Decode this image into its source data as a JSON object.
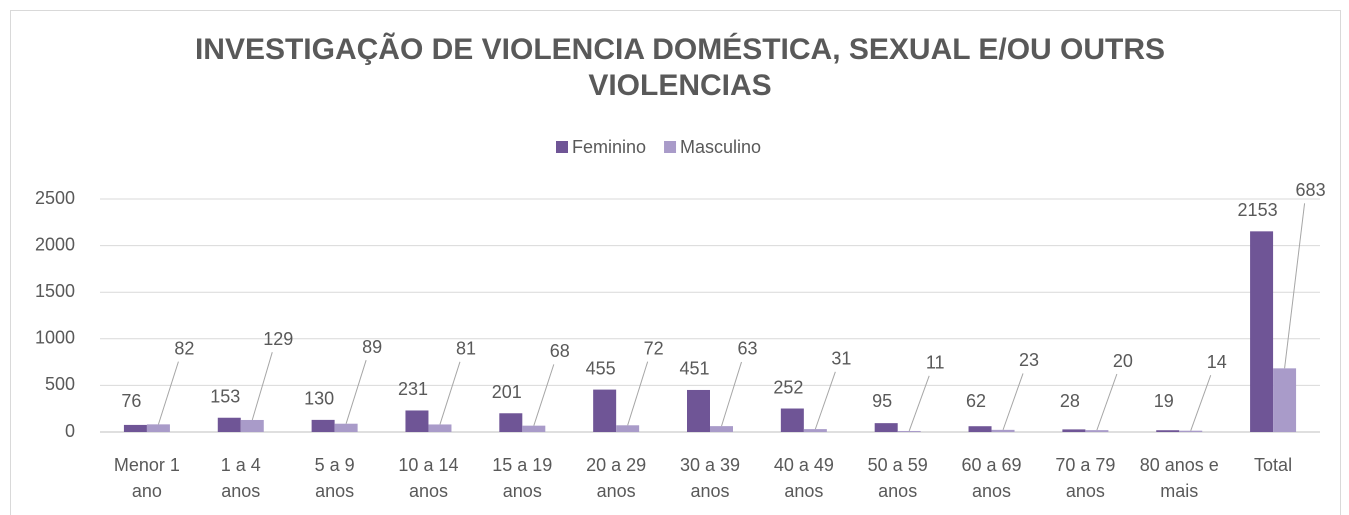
{
  "chart_data": {
    "type": "bar",
    "title": "INVESTIGAÇÃO DE VIOLENCIA DOMÉSTICA, SEXUAL E/OU OUTRS VIOLENCIAS",
    "categories": [
      "Menor 1 ano",
      "1 a 4 anos",
      "5 a 9 anos",
      "10 a 14 anos",
      "15 a 19 anos",
      "20 a 29 anos",
      "30 a 39 anos",
      "40 a 49 anos",
      "50 a 59 anos",
      "60 a 69 anos",
      "70 a 79 anos",
      "80 anos e mais",
      "Total"
    ],
    "series": [
      {
        "name": "Feminino",
        "color": "#6f5596",
        "values": [
          76,
          153,
          130,
          231,
          201,
          455,
          451,
          252,
          95,
          62,
          28,
          19,
          2153
        ]
      },
      {
        "name": "Masculino",
        "color": "#a99bc9",
        "values": [
          82,
          129,
          89,
          81,
          68,
          72,
          63,
          31,
          11,
          23,
          20,
          14,
          683
        ]
      }
    ],
    "ylim": [
      0,
      2500
    ],
    "yticks": [
      0,
      500,
      1000,
      1500,
      2000,
      2500
    ],
    "grid": true,
    "legend": "top"
  }
}
